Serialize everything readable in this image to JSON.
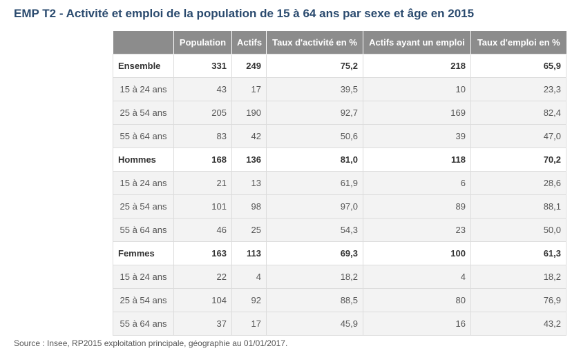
{
  "title": "EMP T2 - Activité et emploi de la population de 15 à 64 ans par sexe et âge en 2015",
  "table": {
    "headers": [
      "",
      "Population",
      "Actifs",
      "Taux d'activité en %",
      "Actifs ayant un emploi",
      "Taux d'emploi en %"
    ],
    "rows": [
      {
        "type": "group",
        "cells": [
          "Ensemble",
          "331",
          "249",
          "75,2",
          "218",
          "65,9"
        ]
      },
      {
        "type": "sub",
        "cells": [
          "15 à 24 ans",
          "43",
          "17",
          "39,5",
          "10",
          "23,3"
        ]
      },
      {
        "type": "sub",
        "cells": [
          "25 à 54 ans",
          "205",
          "190",
          "92,7",
          "169",
          "82,4"
        ]
      },
      {
        "type": "sub",
        "cells": [
          "55 à 64 ans",
          "83",
          "42",
          "50,6",
          "39",
          "47,0"
        ]
      },
      {
        "type": "group",
        "cells": [
          "Hommes",
          "168",
          "136",
          "81,0",
          "118",
          "70,2"
        ]
      },
      {
        "type": "sub",
        "cells": [
          "15 à 24 ans",
          "21",
          "13",
          "61,9",
          "6",
          "28,6"
        ]
      },
      {
        "type": "sub",
        "cells": [
          "25 à 54 ans",
          "101",
          "98",
          "97,0",
          "89",
          "88,1"
        ]
      },
      {
        "type": "sub",
        "cells": [
          "55 à 64 ans",
          "46",
          "25",
          "54,3",
          "23",
          "50,0"
        ]
      },
      {
        "type": "group",
        "cells": [
          "Femmes",
          "163",
          "113",
          "69,3",
          "100",
          "61,3"
        ]
      },
      {
        "type": "sub",
        "cells": [
          "15 à 24 ans",
          "22",
          "4",
          "18,2",
          "4",
          "18,2"
        ]
      },
      {
        "type": "sub",
        "cells": [
          "25 à 54 ans",
          "104",
          "92",
          "88,5",
          "80",
          "76,9"
        ]
      },
      {
        "type": "sub",
        "cells": [
          "55 à 64 ans",
          "37",
          "17",
          "45,9",
          "16",
          "43,2"
        ]
      }
    ]
  },
  "source": "Source : Insee, RP2015 exploitation principale, géographie au 01/01/2017.",
  "colors": {
    "title": "#2a4a6e",
    "header_bg": "#8c8c8c",
    "sub_row_bg": "#f3f3f3",
    "border": "#dcdcdc"
  }
}
